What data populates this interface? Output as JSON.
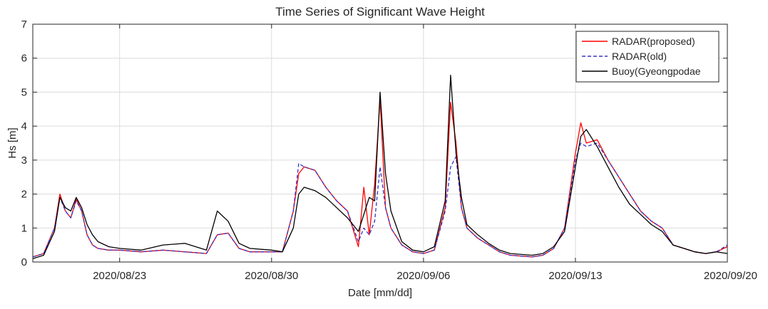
{
  "chart_data": {
    "type": "line",
    "title": "Time Series of Significant Wave Height",
    "xlabel": "Date [mm/dd]",
    "ylabel": "Hs [m]",
    "xlim": [
      "2020/08/19",
      "2020/09/20"
    ],
    "ylim": [
      0,
      7
    ],
    "x_ticks": [
      "2020/08/23",
      "2020/08/30",
      "2020/09/06",
      "2020/09/13",
      "2020/09/20"
    ],
    "y_ticks": [
      0,
      1,
      2,
      3,
      4,
      5,
      6,
      7
    ],
    "grid": true,
    "legend_position": "top-right",
    "series": [
      {
        "name": "RADAR(proposed)",
        "color": "#ff0000",
        "style": "solid",
        "x": [
          "2020/08/19",
          "2020/08/19 12:00",
          "2020/08/20",
          "2020/08/20 06:00",
          "2020/08/20 12:00",
          "2020/08/20 18:00",
          "2020/08/21",
          "2020/08/21 06:00",
          "2020/08/21 12:00",
          "2020/08/21 18:00",
          "2020/08/22",
          "2020/08/22 12:00",
          "2020/08/23",
          "2020/08/24",
          "2020/08/25",
          "2020/08/26",
          "2020/08/27",
          "2020/08/27 12:00",
          "2020/08/28",
          "2020/08/28 12:00",
          "2020/08/29",
          "2020/08/30",
          "2020/08/30 12:00",
          "2020/08/31",
          "2020/08/31 06:00",
          "2020/08/31 12:00",
          "2020/09/01",
          "2020/09/01 12:00",
          "2020/09/02",
          "2020/09/02 12:00",
          "2020/09/03",
          "2020/09/03 06:00",
          "2020/09/03 12:00",
          "2020/09/03 18:00",
          "2020/09/04",
          "2020/09/04 06:00",
          "2020/09/04 12:00",
          "2020/09/05",
          "2020/09/05 12:00",
          "2020/09/06",
          "2020/09/06 12:00",
          "2020/09/07",
          "2020/09/07 06:00",
          "2020/09/07 12:00",
          "2020/09/07 18:00",
          "2020/09/08",
          "2020/09/08 12:00",
          "2020/09/09",
          "2020/09/09 12:00",
          "2020/09/10",
          "2020/09/11",
          "2020/09/11 12:00",
          "2020/09/12",
          "2020/09/12 12:00",
          "2020/09/13",
          "2020/09/13 06:00",
          "2020/09/13 12:00",
          "2020/09/14",
          "2020/09/14 12:00",
          "2020/09/15",
          "2020/09/15 12:00",
          "2020/09/16",
          "2020/09/16 12:00",
          "2020/09/17",
          "2020/09/17 12:00",
          "2020/09/18",
          "2020/09/18 12:00",
          "2020/09/19",
          "2020/09/19 12:00",
          "2020/09/20"
        ],
        "y": [
          0.15,
          0.25,
          1.0,
          2.0,
          1.5,
          1.3,
          1.85,
          1.5,
          0.8,
          0.5,
          0.4,
          0.35,
          0.35,
          0.3,
          0.35,
          0.3,
          0.25,
          0.8,
          0.85,
          0.4,
          0.3,
          0.3,
          0.3,
          1.5,
          2.6,
          2.8,
          2.7,
          2.2,
          1.8,
          1.5,
          0.45,
          2.2,
          0.8,
          2.3,
          4.8,
          1.6,
          1.0,
          0.5,
          0.3,
          0.25,
          0.35,
          1.6,
          4.7,
          3.5,
          1.6,
          1.0,
          0.7,
          0.5,
          0.3,
          0.2,
          0.15,
          0.2,
          0.4,
          1.0,
          3.2,
          4.1,
          3.5,
          3.6,
          3.0,
          2.5,
          2.0,
          1.5,
          1.2,
          1.0,
          0.5,
          0.4,
          0.3,
          0.25,
          0.3,
          0.45
        ]
      },
      {
        "name": "RADAR(old)",
        "color": "#3333cc",
        "style": "dashed",
        "x": [
          "2020/08/19",
          "2020/08/19 12:00",
          "2020/08/20",
          "2020/08/20 06:00",
          "2020/08/20 12:00",
          "2020/08/20 18:00",
          "2020/08/21",
          "2020/08/21 06:00",
          "2020/08/21 12:00",
          "2020/08/21 18:00",
          "2020/08/22",
          "2020/08/22 12:00",
          "2020/08/23",
          "2020/08/24",
          "2020/08/25",
          "2020/08/26",
          "2020/08/27",
          "2020/08/27 12:00",
          "2020/08/28",
          "2020/08/28 12:00",
          "2020/08/29",
          "2020/08/30",
          "2020/08/30 12:00",
          "2020/08/31",
          "2020/08/31 06:00",
          "2020/08/31 12:00",
          "2020/09/01",
          "2020/09/01 12:00",
          "2020/09/02",
          "2020/09/02 12:00",
          "2020/09/03",
          "2020/09/03 06:00",
          "2020/09/03 12:00",
          "2020/09/03 18:00",
          "2020/09/04",
          "2020/09/04 06:00",
          "2020/09/04 12:00",
          "2020/09/05",
          "2020/09/05 12:00",
          "2020/09/06",
          "2020/09/06 12:00",
          "2020/09/07",
          "2020/09/07 06:00",
          "2020/09/07 12:00",
          "2020/09/07 18:00",
          "2020/09/08",
          "2020/09/08 12:00",
          "2020/09/09",
          "2020/09/09 12:00",
          "2020/09/10",
          "2020/09/11",
          "2020/09/11 12:00",
          "2020/09/12",
          "2020/09/12 12:00",
          "2020/09/13",
          "2020/09/13 06:00",
          "2020/09/13 12:00",
          "2020/09/14",
          "2020/09/14 12:00",
          "2020/09/15",
          "2020/09/15 12:00",
          "2020/09/16",
          "2020/09/16 12:00",
          "2020/09/17",
          "2020/09/17 12:00",
          "2020/09/18",
          "2020/09/18 12:00",
          "2020/09/19",
          "2020/09/19 12:00",
          "2020/09/20"
        ],
        "y": [
          0.15,
          0.25,
          1.0,
          1.9,
          1.5,
          1.3,
          1.8,
          1.5,
          0.8,
          0.5,
          0.4,
          0.35,
          0.35,
          0.3,
          0.35,
          0.3,
          0.25,
          0.8,
          0.85,
          0.4,
          0.3,
          0.3,
          0.3,
          1.5,
          2.9,
          2.8,
          2.7,
          2.2,
          1.8,
          1.5,
          0.6,
          1.0,
          0.8,
          1.2,
          2.8,
          1.6,
          1.0,
          0.5,
          0.3,
          0.25,
          0.35,
          1.5,
          2.8,
          3.1,
          1.6,
          1.0,
          0.7,
          0.5,
          0.3,
          0.2,
          0.15,
          0.2,
          0.4,
          1.0,
          3.0,
          3.5,
          3.4,
          3.5,
          3.0,
          2.5,
          2.0,
          1.5,
          1.2,
          1.0,
          0.5,
          0.4,
          0.3,
          0.25,
          0.3,
          0.5
        ]
      },
      {
        "name": "Buoy(Gyeongpodae",
        "color": "#000000",
        "style": "solid",
        "x": [
          "2020/08/19",
          "2020/08/19 12:00",
          "2020/08/20",
          "2020/08/20 06:00",
          "2020/08/20 12:00",
          "2020/08/20 18:00",
          "2020/08/21",
          "2020/08/21 06:00",
          "2020/08/21 12:00",
          "2020/08/21 18:00",
          "2020/08/22",
          "2020/08/22 12:00",
          "2020/08/23",
          "2020/08/24",
          "2020/08/25",
          "2020/08/26",
          "2020/08/27",
          "2020/08/27 12:00",
          "2020/08/28",
          "2020/08/28 12:00",
          "2020/08/29",
          "2020/08/30",
          "2020/08/30 12:00",
          "2020/08/31",
          "2020/08/31 06:00",
          "2020/08/31 12:00",
          "2020/09/01",
          "2020/09/01 12:00",
          "2020/09/02",
          "2020/09/02 12:00",
          "2020/09/03",
          "2020/09/03 06:00",
          "2020/09/03 12:00",
          "2020/09/03 18:00",
          "2020/09/04",
          "2020/09/04 06:00",
          "2020/09/04 12:00",
          "2020/09/05",
          "2020/09/05 12:00",
          "2020/09/06",
          "2020/09/06 12:00",
          "2020/09/07",
          "2020/09/07 06:00",
          "2020/09/07 12:00",
          "2020/09/07 18:00",
          "2020/09/08",
          "2020/09/08 12:00",
          "2020/09/09",
          "2020/09/09 12:00",
          "2020/09/10",
          "2020/09/11",
          "2020/09/11 12:00",
          "2020/09/12",
          "2020/09/12 12:00",
          "2020/09/13",
          "2020/09/13 06:00",
          "2020/09/13 12:00",
          "2020/09/14",
          "2020/09/14 12:00",
          "2020/09/15",
          "2020/09/15 12:00",
          "2020/09/16",
          "2020/09/16 12:00",
          "2020/09/17",
          "2020/09/17 12:00",
          "2020/09/18",
          "2020/09/18 12:00",
          "2020/09/19",
          "2020/09/19 12:00",
          "2020/09/20"
        ],
        "y": [
          0.1,
          0.2,
          0.9,
          1.9,
          1.6,
          1.5,
          1.9,
          1.6,
          1.1,
          0.8,
          0.6,
          0.45,
          0.4,
          0.35,
          0.5,
          0.55,
          0.35,
          1.5,
          1.2,
          0.55,
          0.4,
          0.35,
          0.3,
          1.0,
          2.0,
          2.2,
          2.1,
          1.9,
          1.6,
          1.3,
          0.9,
          1.4,
          1.9,
          1.8,
          5.0,
          2.6,
          1.5,
          0.6,
          0.35,
          0.3,
          0.45,
          1.8,
          5.5,
          3.2,
          1.9,
          1.1,
          0.8,
          0.55,
          0.35,
          0.25,
          0.2,
          0.25,
          0.45,
          0.9,
          2.8,
          3.7,
          3.9,
          3.4,
          2.8,
          2.2,
          1.7,
          1.4,
          1.1,
          0.9,
          0.5,
          0.4,
          0.3,
          0.25,
          0.3,
          0.25
        ]
      }
    ]
  }
}
